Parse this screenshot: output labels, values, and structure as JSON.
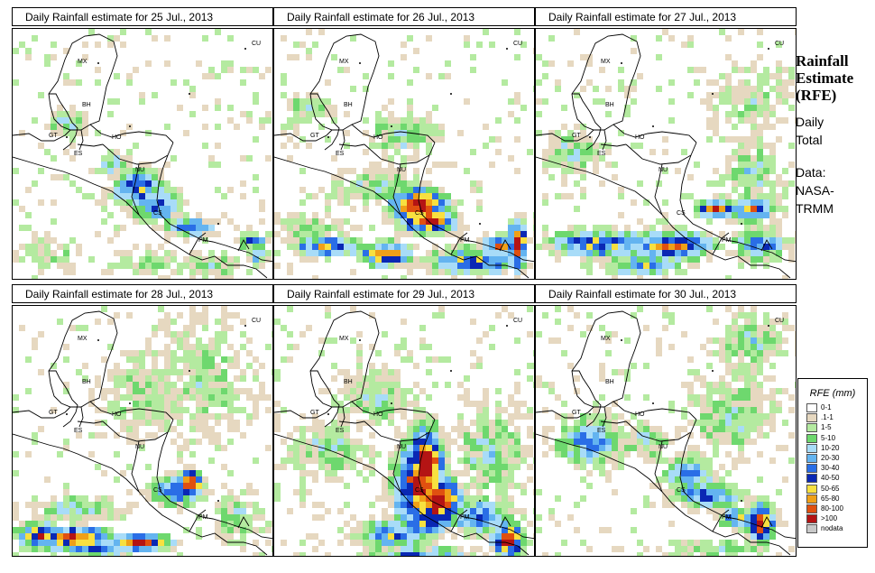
{
  "panels": [
    {
      "title": "Daily Rainfall estimate for  25 Jul., 2013"
    },
    {
      "title": "Daily Rainfall estimate for  26 Jul., 2013"
    },
    {
      "title": "Daily Rainfall estimate for  27 Jul., 2013"
    },
    {
      "title": "Daily Rainfall estimate for  28 Jul., 2013"
    },
    {
      "title": "Daily Rainfall estimate for  29 Jul., 2013"
    },
    {
      "title": "Daily Rainfall estimate for  30 Jul., 2013"
    }
  ],
  "countries": [
    "MX",
    "BH",
    "GT",
    "HO",
    "ES",
    "NU",
    "CS",
    "PM",
    "CU"
  ],
  "side": {
    "title_line1": "Rainfall",
    "title_line2": "Estimate",
    "title_line3": "(RFE)",
    "period_line1": "Daily",
    "period_line2": "Total",
    "source_line1": "Data:",
    "source_line2": "NASA-",
    "source_line3": "TRMM"
  },
  "legend": {
    "title": "RFE (mm)",
    "classes": [
      {
        "label": "0-1",
        "color": "#ffffff"
      },
      {
        "label": ".1-1",
        "color": "#e6d8c0"
      },
      {
        "label": "1-5",
        "color": "#b4eaa0"
      },
      {
        "label": "5-10",
        "color": "#6ed86e"
      },
      {
        "label": "10-20",
        "color": "#a8dcf8"
      },
      {
        "label": "20-30",
        "color": "#64b4f0"
      },
      {
        "label": "30-40",
        "color": "#2a6ee6"
      },
      {
        "label": "40-50",
        "color": "#0a28b4"
      },
      {
        "label": "50-65",
        "color": "#f8e040"
      },
      {
        "label": "65-80",
        "color": "#f0a018"
      },
      {
        "label": "80-100",
        "color": "#e05010"
      },
      {
        "label": ">100",
        "color": "#b41414"
      },
      {
        "label": "nodata",
        "color": "#c8c8c8"
      }
    ]
  }
}
